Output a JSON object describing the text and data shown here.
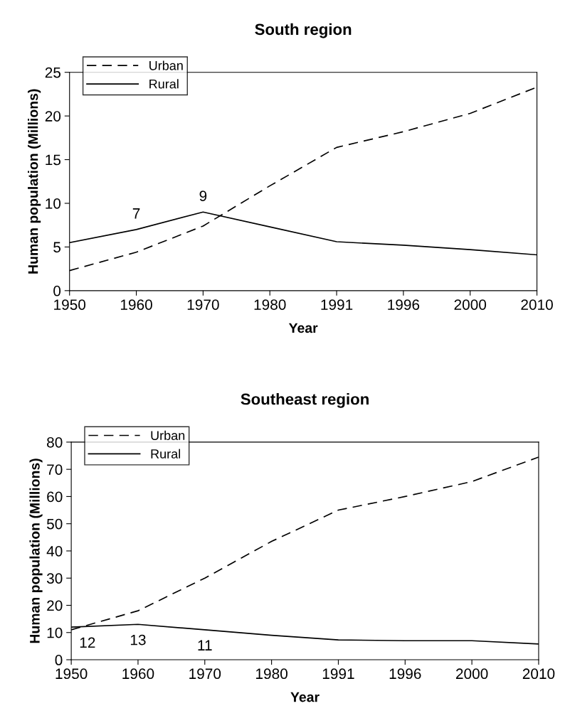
{
  "chart_data": [
    {
      "type": "line",
      "title": "South region",
      "xlabel": "Year",
      "ylabel": "Human population (Millions)",
      "categories": [
        "1950",
        "1960",
        "1970",
        "1980",
        "1991",
        "1996",
        "2000",
        "2010"
      ],
      "series": [
        {
          "name": "Urban",
          "color": "#000000",
          "line_style": "dashed",
          "values": [
            2.3,
            4.4,
            7.4,
            12.0,
            16.4,
            18.2,
            20.3,
            23.3
          ]
        },
        {
          "name": "Rural",
          "color": "#000000",
          "line_style": "solid",
          "values": [
            5.5,
            7,
            9,
            7.3,
            5.6,
            5.2,
            4.7,
            4.1
          ]
        }
      ],
      "ylim": [
        0,
        25
      ],
      "yticks": [
        0,
        5,
        10,
        15,
        20,
        25
      ],
      "grid": false,
      "legend": "top left",
      "marker": "none",
      "annotations": [
        {
          "text": "7",
          "x": "1960",
          "y": 7
        },
        {
          "text": "9",
          "x": "1970",
          "y": 9
        }
      ]
    },
    {
      "type": "line",
      "title": "Southeast region",
      "xlabel": "Year",
      "ylabel": "Human population (Millions)",
      "categories": [
        "1950",
        "1960",
        "1970",
        "1980",
        "1991",
        "1996",
        "2000",
        "2010"
      ],
      "series": [
        {
          "name": "Urban",
          "color": "#000000",
          "line_style": "dashed",
          "values": [
            11,
            18,
            30,
            43.5,
            55,
            60,
            65.5,
            74.5
          ]
        },
        {
          "name": "Rural",
          "color": "#000000",
          "line_style": "solid",
          "values": [
            12,
            13,
            11,
            9,
            7.3,
            7,
            7,
            5.8
          ]
        }
      ],
      "ylim": [
        0,
        80
      ],
      "yticks": [
        0,
        10,
        20,
        30,
        40,
        50,
        60,
        70,
        80
      ],
      "grid": false,
      "legend": "top left",
      "marker": "none",
      "annotations": [
        {
          "text": "12",
          "x": "1950",
          "y": 12
        },
        {
          "text": "13",
          "x": "1960",
          "y": 13
        },
        {
          "text": "11",
          "x": "1970",
          "y": 11
        }
      ]
    }
  ]
}
